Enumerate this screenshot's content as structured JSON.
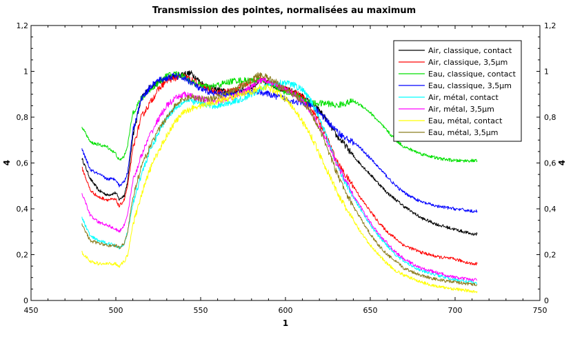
{
  "chart_data": {
    "type": "line",
    "title": "Transmission des pointes, normalisées au maximum",
    "xlabel": "1",
    "ylabel": "4",
    "xlim": [
      450,
      750
    ],
    "ylim": [
      0,
      1.2
    ],
    "xticks": [
      450,
      500,
      550,
      600,
      650,
      700,
      750
    ],
    "yticks": [
      0,
      0.2,
      0.4,
      0.6,
      0.8,
      1,
      1.2
    ],
    "xtick_labels": [
      "450",
      "500",
      "550",
      "600",
      "650",
      "700",
      "750"
    ],
    "ytick_labels": [
      "0",
      "0,2",
      "0,4",
      "0,6",
      "0,8",
      "1",
      "1,2"
    ],
    "grid": false,
    "legend_position": "top-right",
    "series": [
      {
        "name": "Air, classique, contact",
        "color": "#000000",
        "x": [
          480,
          485,
          490,
          495,
          500,
          502,
          505,
          507,
          510,
          515,
          520,
          525,
          530,
          535,
          540,
          545,
          550,
          555,
          560,
          565,
          570,
          575,
          580,
          585,
          590,
          595,
          600,
          605,
          610,
          615,
          620,
          625,
          630,
          635,
          640,
          645,
          650,
          655,
          660,
          665,
          670,
          680,
          690,
          700,
          710,
          713
        ],
        "y": [
          0.62,
          0.53,
          0.48,
          0.46,
          0.47,
          0.44,
          0.46,
          0.52,
          0.72,
          0.88,
          0.93,
          0.95,
          0.97,
          0.98,
          0.99,
          0.99,
          0.95,
          0.93,
          0.92,
          0.91,
          0.91,
          0.92,
          0.93,
          0.96,
          0.95,
          0.93,
          0.92,
          0.91,
          0.89,
          0.86,
          0.83,
          0.78,
          0.72,
          0.68,
          0.63,
          0.59,
          0.55,
          0.51,
          0.47,
          0.44,
          0.41,
          0.36,
          0.33,
          0.31,
          0.29,
          0.29
        ]
      },
      {
        "name": "Air, classique, 3,5µm",
        "color": "#ff0000",
        "x": [
          480,
          485,
          490,
          495,
          500,
          502,
          505,
          507,
          510,
          515,
          520,
          525,
          530,
          535,
          540,
          545,
          550,
          555,
          560,
          565,
          570,
          575,
          580,
          585,
          590,
          595,
          600,
          605,
          610,
          615,
          620,
          625,
          630,
          635,
          640,
          645,
          650,
          655,
          660,
          665,
          670,
          680,
          690,
          700,
          710,
          713
        ],
        "y": [
          0.58,
          0.48,
          0.45,
          0.44,
          0.44,
          0.41,
          0.44,
          0.5,
          0.66,
          0.8,
          0.86,
          0.92,
          0.96,
          0.97,
          0.98,
          0.96,
          0.94,
          0.92,
          0.91,
          0.91,
          0.92,
          0.94,
          0.96,
          0.97,
          0.95,
          0.94,
          0.92,
          0.91,
          0.89,
          0.84,
          0.78,
          0.7,
          0.61,
          0.55,
          0.5,
          0.44,
          0.39,
          0.34,
          0.3,
          0.27,
          0.24,
          0.21,
          0.19,
          0.18,
          0.16,
          0.16
        ]
      },
      {
        "name": "Eau, classique, contact",
        "color": "#00e000",
        "x": [
          480,
          485,
          490,
          495,
          500,
          502,
          505,
          507,
          510,
          515,
          520,
          525,
          530,
          535,
          540,
          545,
          550,
          555,
          560,
          565,
          570,
          575,
          580,
          585,
          590,
          595,
          600,
          605,
          610,
          615,
          620,
          625,
          630,
          635,
          640,
          645,
          650,
          655,
          660,
          665,
          670,
          680,
          690,
          700,
          710,
          713
        ],
        "y": [
          0.76,
          0.69,
          0.68,
          0.67,
          0.64,
          0.61,
          0.63,
          0.68,
          0.82,
          0.88,
          0.92,
          0.95,
          0.98,
          0.99,
          0.98,
          0.95,
          0.94,
          0.93,
          0.94,
          0.95,
          0.96,
          0.96,
          0.96,
          0.96,
          0.95,
          0.93,
          0.91,
          0.9,
          0.88,
          0.86,
          0.86,
          0.86,
          0.85,
          0.86,
          0.87,
          0.85,
          0.82,
          0.78,
          0.74,
          0.7,
          0.67,
          0.64,
          0.62,
          0.61,
          0.61,
          0.61
        ]
      },
      {
        "name": "Eau, classique, 3,5µm",
        "color": "#0000ff",
        "x": [
          480,
          485,
          490,
          495,
          500,
          502,
          505,
          507,
          510,
          515,
          520,
          525,
          530,
          535,
          540,
          545,
          550,
          555,
          560,
          565,
          570,
          575,
          580,
          585,
          590,
          595,
          600,
          605,
          610,
          615,
          620,
          625,
          630,
          635,
          640,
          645,
          650,
          655,
          660,
          665,
          670,
          680,
          690,
          700,
          710,
          713
        ],
        "y": [
          0.66,
          0.57,
          0.55,
          0.53,
          0.53,
          0.5,
          0.52,
          0.56,
          0.74,
          0.88,
          0.93,
          0.96,
          0.97,
          0.98,
          0.97,
          0.95,
          0.92,
          0.91,
          0.9,
          0.9,
          0.9,
          0.91,
          0.91,
          0.91,
          0.9,
          0.89,
          0.88,
          0.87,
          0.86,
          0.85,
          0.82,
          0.78,
          0.74,
          0.71,
          0.69,
          0.66,
          0.62,
          0.58,
          0.54,
          0.5,
          0.47,
          0.43,
          0.41,
          0.4,
          0.39,
          0.39
        ]
      },
      {
        "name": "Air, métal, contact",
        "color": "#00ffff",
        "x": [
          480,
          485,
          490,
          495,
          500,
          502,
          505,
          507,
          510,
          515,
          520,
          525,
          530,
          535,
          540,
          545,
          550,
          555,
          560,
          565,
          570,
          575,
          580,
          585,
          590,
          595,
          600,
          605,
          610,
          615,
          620,
          625,
          630,
          635,
          640,
          645,
          650,
          655,
          660,
          665,
          670,
          680,
          690,
          700,
          710,
          713
        ],
        "y": [
          0.36,
          0.28,
          0.26,
          0.25,
          0.24,
          0.23,
          0.25,
          0.3,
          0.42,
          0.55,
          0.65,
          0.73,
          0.8,
          0.84,
          0.87,
          0.87,
          0.86,
          0.85,
          0.85,
          0.86,
          0.87,
          0.88,
          0.9,
          0.92,
          0.94,
          0.95,
          0.95,
          0.94,
          0.92,
          0.87,
          0.8,
          0.7,
          0.6,
          0.52,
          0.45,
          0.39,
          0.33,
          0.28,
          0.24,
          0.2,
          0.17,
          0.13,
          0.11,
          0.09,
          0.08,
          0.07
        ]
      },
      {
        "name": "Air, métal, 3,5µm",
        "color": "#ff00ff",
        "x": [
          480,
          485,
          490,
          495,
          500,
          502,
          505,
          507,
          510,
          515,
          520,
          525,
          530,
          535,
          540,
          545,
          550,
          555,
          560,
          565,
          570,
          575,
          580,
          585,
          590,
          595,
          600,
          605,
          610,
          615,
          620,
          625,
          630,
          635,
          640,
          645,
          650,
          655,
          660,
          665,
          670,
          680,
          690,
          700,
          710,
          713
        ],
        "y": [
          0.47,
          0.37,
          0.34,
          0.33,
          0.31,
          0.3,
          0.33,
          0.38,
          0.52,
          0.63,
          0.72,
          0.79,
          0.85,
          0.88,
          0.9,
          0.89,
          0.88,
          0.87,
          0.87,
          0.88,
          0.89,
          0.91,
          0.93,
          0.96,
          0.96,
          0.94,
          0.92,
          0.9,
          0.87,
          0.82,
          0.76,
          0.68,
          0.6,
          0.53,
          0.46,
          0.4,
          0.34,
          0.29,
          0.25,
          0.21,
          0.18,
          0.14,
          0.12,
          0.1,
          0.09,
          0.09
        ]
      },
      {
        "name": "Eau, métal, contact",
        "color": "#ffff00",
        "x": [
          480,
          485,
          490,
          495,
          500,
          502,
          505,
          507,
          510,
          515,
          520,
          525,
          530,
          535,
          540,
          545,
          550,
          555,
          560,
          565,
          570,
          575,
          580,
          585,
          590,
          595,
          600,
          605,
          610,
          615,
          620,
          625,
          630,
          635,
          640,
          645,
          650,
          655,
          660,
          665,
          670,
          680,
          690,
          700,
          710,
          713
        ],
        "y": [
          0.21,
          0.17,
          0.16,
          0.16,
          0.16,
          0.15,
          0.17,
          0.2,
          0.33,
          0.46,
          0.57,
          0.65,
          0.72,
          0.78,
          0.82,
          0.84,
          0.85,
          0.86,
          0.87,
          0.88,
          0.89,
          0.9,
          0.91,
          0.93,
          0.93,
          0.91,
          0.88,
          0.84,
          0.78,
          0.72,
          0.64,
          0.56,
          0.48,
          0.41,
          0.35,
          0.29,
          0.24,
          0.2,
          0.16,
          0.13,
          0.11,
          0.08,
          0.06,
          0.05,
          0.04,
          0.04
        ]
      },
      {
        "name": "Eau, métal, 3,5µm",
        "color": "#8b7d1f",
        "x": [
          480,
          485,
          490,
          495,
          500,
          502,
          505,
          507,
          510,
          515,
          520,
          525,
          530,
          535,
          540,
          545,
          550,
          555,
          560,
          565,
          570,
          575,
          580,
          585,
          590,
          595,
          600,
          605,
          610,
          615,
          620,
          625,
          630,
          635,
          640,
          645,
          650,
          655,
          660,
          665,
          670,
          680,
          690,
          700,
          710,
          713
        ],
        "y": [
          0.33,
          0.26,
          0.25,
          0.24,
          0.24,
          0.23,
          0.25,
          0.3,
          0.45,
          0.58,
          0.67,
          0.74,
          0.8,
          0.85,
          0.88,
          0.89,
          0.88,
          0.88,
          0.89,
          0.9,
          0.92,
          0.94,
          0.96,
          0.99,
          0.97,
          0.95,
          0.92,
          0.9,
          0.87,
          0.82,
          0.75,
          0.66,
          0.56,
          0.48,
          0.41,
          0.35,
          0.29,
          0.24,
          0.2,
          0.17,
          0.14,
          0.11,
          0.09,
          0.08,
          0.07,
          0.07
        ]
      }
    ]
  }
}
